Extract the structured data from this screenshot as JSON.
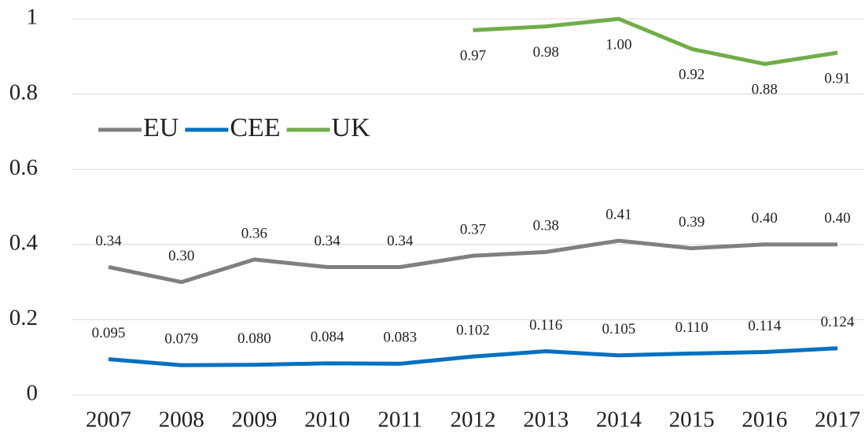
{
  "chart_data": {
    "type": "line",
    "categories": [
      "2007",
      "2008",
      "2009",
      "2010",
      "2011",
      "2012",
      "2013",
      "2014",
      "2015",
      "2016",
      "2017"
    ],
    "series": [
      {
        "name": "EU",
        "color": "#808080",
        "values": [
          0.34,
          0.3,
          0.36,
          0.34,
          0.34,
          0.37,
          0.38,
          0.41,
          0.39,
          0.4,
          0.4
        ],
        "value_labels": [
          "0.34",
          "0.30",
          "0.36",
          "0.34",
          "0.34",
          "0.37",
          "0.38",
          "0.41",
          "0.39",
          "0.40",
          "0.40"
        ]
      },
      {
        "name": "CEE",
        "color": "#0070c0",
        "values": [
          0.095,
          0.079,
          0.08,
          0.084,
          0.083,
          0.102,
          0.116,
          0.105,
          0.11,
          0.114,
          0.124
        ],
        "value_labels": [
          "0.095",
          "0.079",
          "0.080",
          "0.084",
          "0.083",
          "0.102",
          "0.116",
          "0.105",
          "0.110",
          "0.114",
          "0.124"
        ]
      },
      {
        "name": "UK",
        "color": "#70ad47",
        "values": [
          null,
          null,
          null,
          null,
          null,
          0.97,
          0.98,
          1.0,
          0.92,
          0.88,
          0.91
        ],
        "value_labels": [
          null,
          null,
          null,
          null,
          null,
          "0.97",
          "0.98",
          "1.00",
          "0.92",
          "0.88",
          "0.91"
        ]
      }
    ],
    "ylim": [
      0,
      1
    ],
    "yticks": [
      0,
      0.2,
      0.4,
      0.6,
      0.8,
      1
    ],
    "grid": true,
    "legend": "upper left"
  }
}
